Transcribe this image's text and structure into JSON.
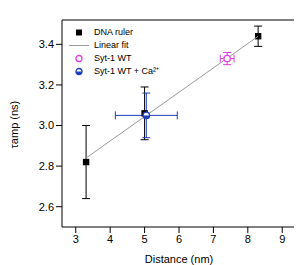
{
  "chart_data": {
    "type": "scatter",
    "xlabel": "Distance (nm)",
    "ylabel": "τamp (ns)",
    "xlim": [
      2.6,
      9.4
    ],
    "xticks": [
      3,
      4,
      5,
      6,
      7,
      8,
      9
    ],
    "ylim": [
      2.5,
      3.52
    ],
    "yticks": [
      2.6,
      2.8,
      {
        "value": 3.0,
        "label": "3.0"
      },
      3.2,
      3.4
    ],
    "legend": "upper left",
    "grid": false,
    "series": [
      {
        "name": "DNA ruler",
        "color": "#000000",
        "marker": "square",
        "x": [
          3.3,
          5.0,
          8.3
        ],
        "values": [
          2.82,
          3.06,
          3.44
        ],
        "y_err": [
          0.18,
          0.13,
          0.05
        ]
      },
      {
        "name": "Linear fit",
        "type": "line",
        "color": "#9a9a9a",
        "line_style": "solid",
        "x": [
          3.3,
          8.3
        ],
        "values": [
          2.84,
          3.44
        ]
      },
      {
        "name": "Syt-1 WT",
        "color": "#e040e0",
        "marker": "open_circle",
        "x": [
          7.4
        ],
        "values": [
          3.33
        ],
        "y_err": [
          0.03
        ],
        "x_err": [
          0.2
        ]
      },
      {
        "name": "Syt-1 WT + Ca²⁺",
        "color": "#1f3fbf",
        "marker": "half_circle",
        "x": [
          5.05
        ],
        "values": [
          3.05
        ],
        "y_err": [
          0.11
        ],
        "x_err": [
          0.9
        ]
      }
    ]
  }
}
